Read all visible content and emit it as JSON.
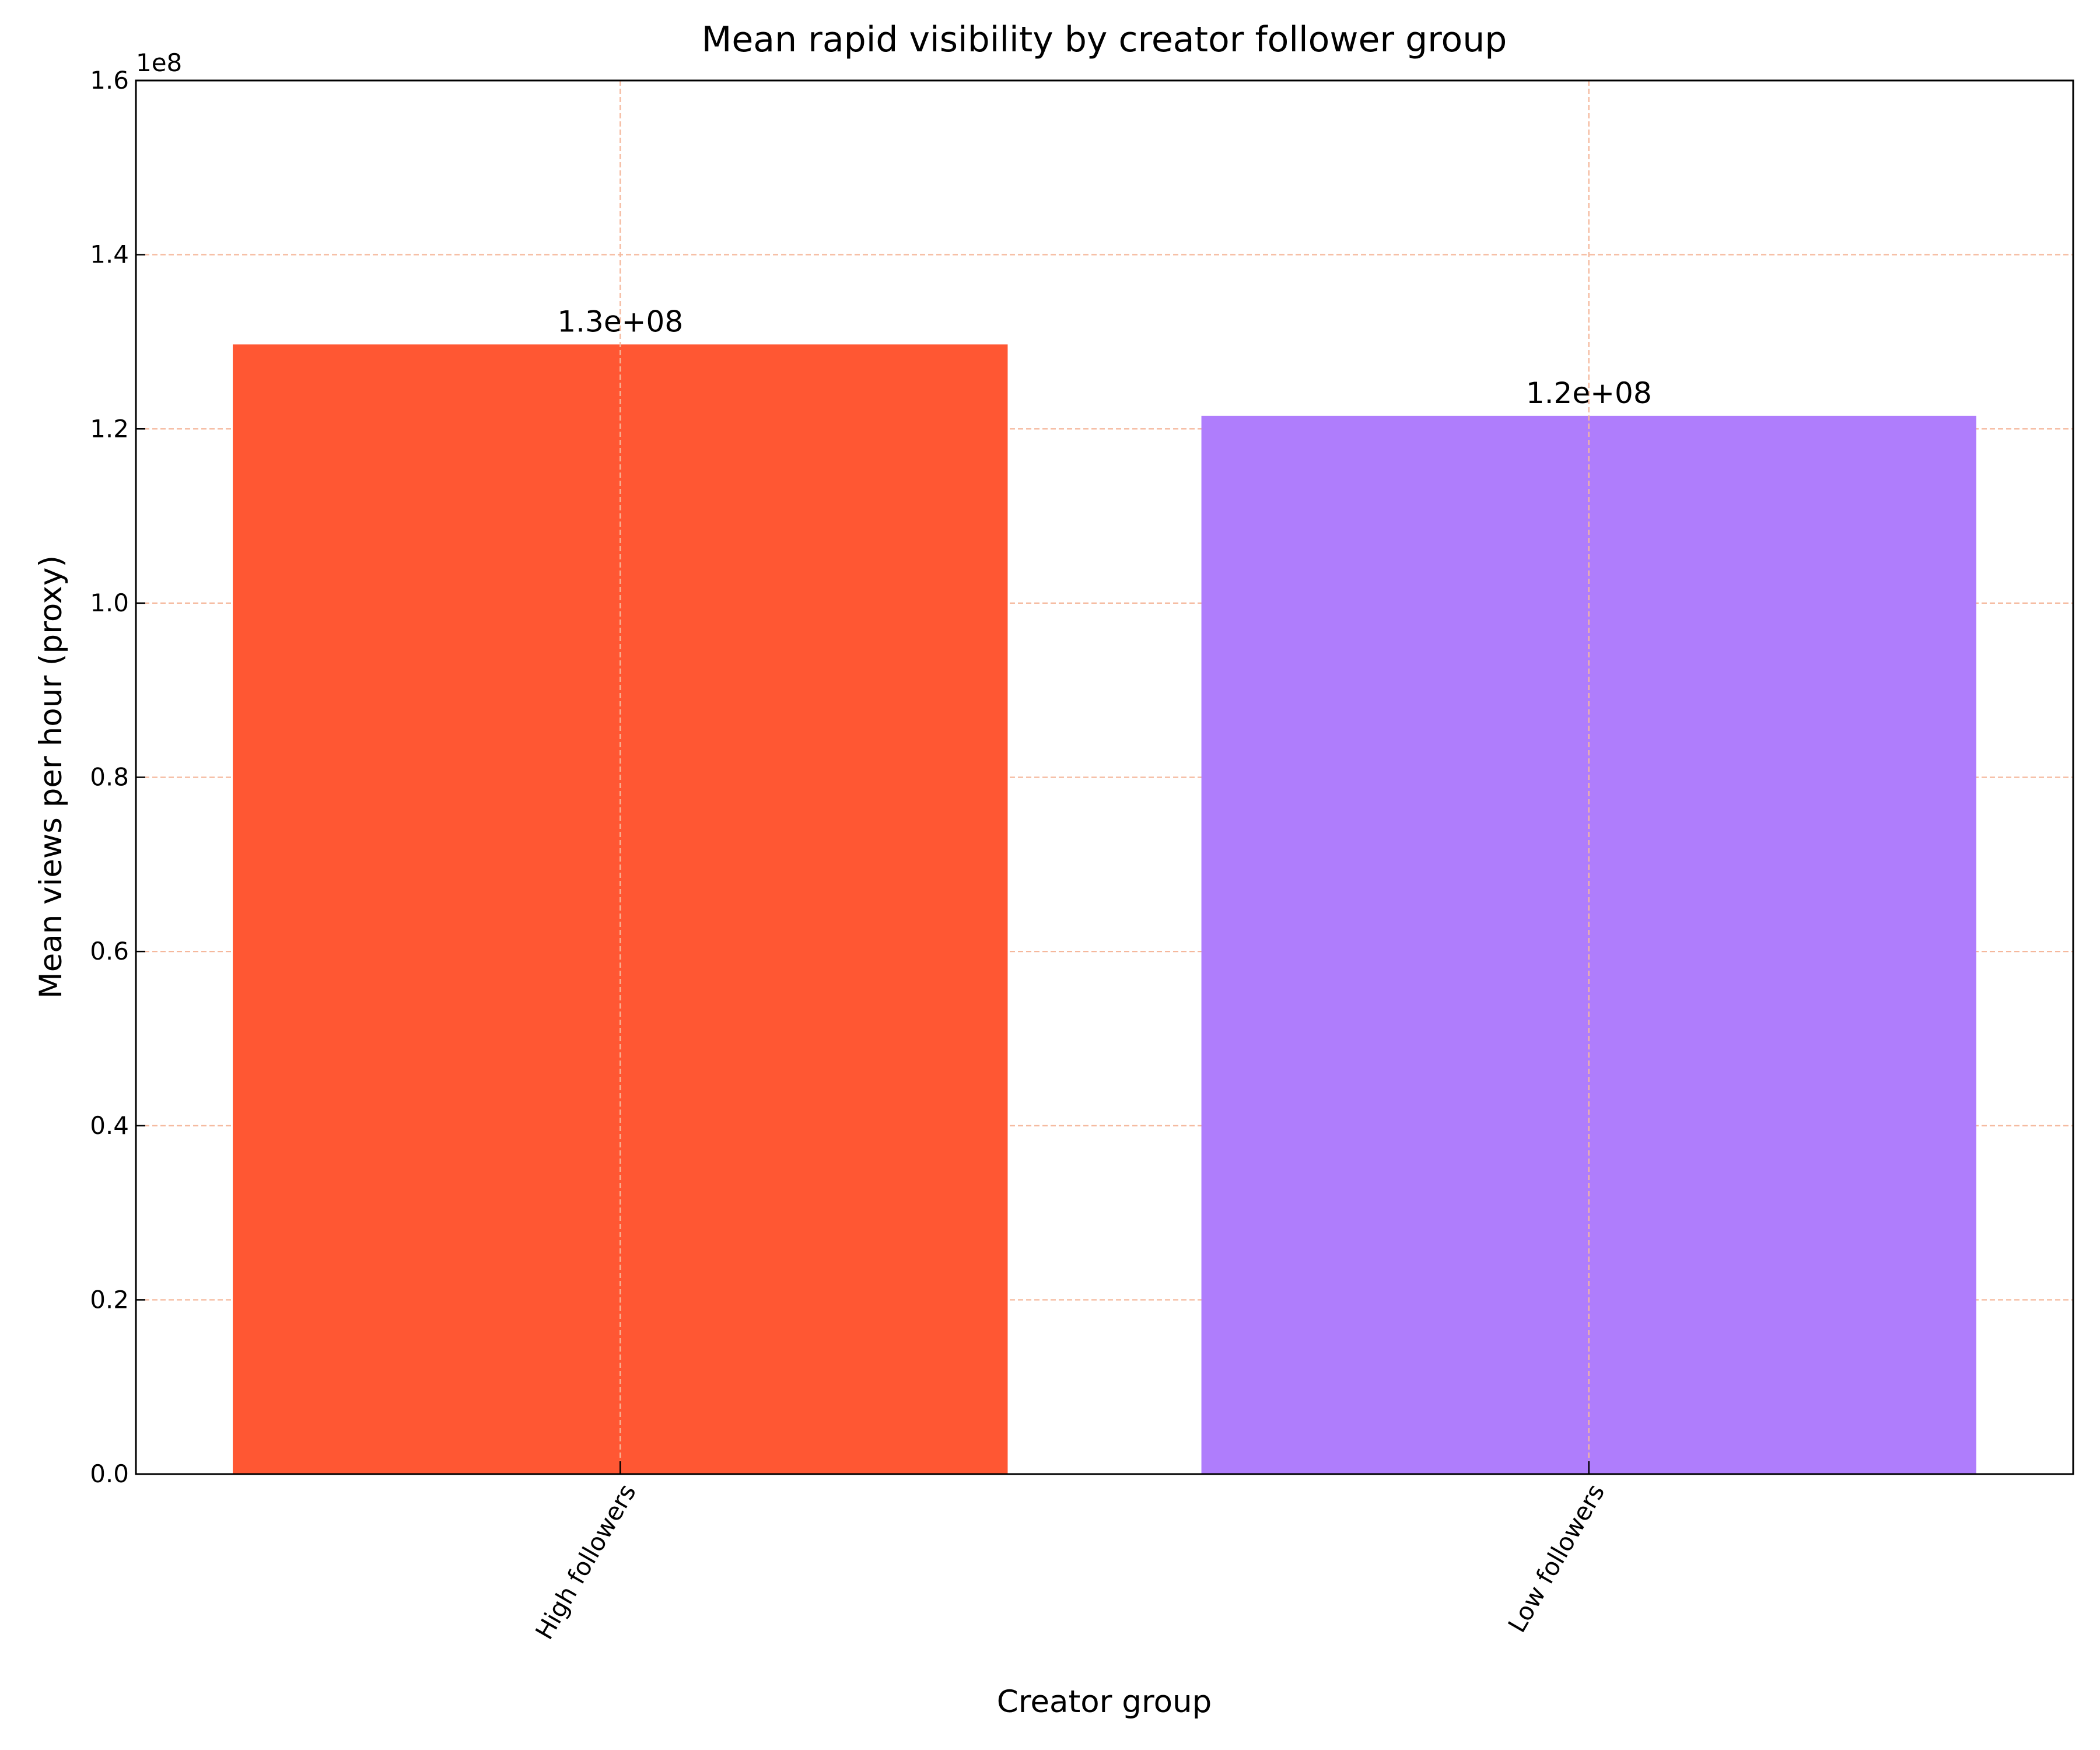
{
  "chart_data": {
    "type": "bar",
    "title": "Mean rapid visibility by creator follower group",
    "x_label": "Creator group",
    "y_label": "Mean views per hour (proxy)",
    "y_offset_label": "1e8",
    "categories": [
      "High followers",
      "Low followers"
    ],
    "values": [
      129700000,
      121500000
    ],
    "value_labels": [
      "1.3e+08",
      "1.2e+08"
    ],
    "colors": [
      "#ff5733",
      "#af7dfc"
    ],
    "title_color": "#a97bf0",
    "ylim": [
      0,
      160000000
    ],
    "yticks": [
      {
        "value": 0,
        "label": "0.0"
      },
      {
        "value": 20000000,
        "label": "0.2"
      },
      {
        "value": 40000000,
        "label": "0.4"
      },
      {
        "value": 60000000,
        "label": "0.6"
      },
      {
        "value": 80000000,
        "label": "0.8"
      },
      {
        "value": 100000000,
        "label": "1.0"
      },
      {
        "value": 120000000,
        "label": "1.2"
      },
      {
        "value": 140000000,
        "label": "1.4"
      },
      {
        "value": 160000000,
        "label": "1.6"
      }
    ],
    "grid": true
  }
}
